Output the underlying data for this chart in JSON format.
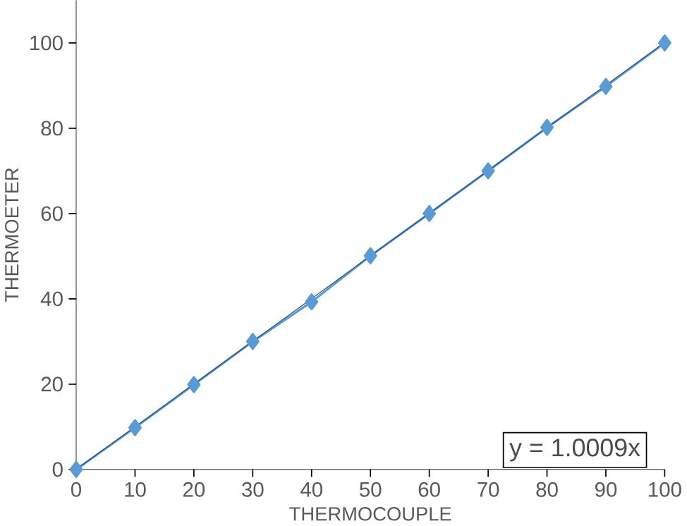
{
  "chart_data": {
    "type": "line",
    "xlabel": "THERMOCOUPLE",
    "ylabel": "THERMOETER",
    "xlim": [
      0,
      100
    ],
    "ylim": [
      0,
      110
    ],
    "xticks": [
      0,
      10,
      20,
      30,
      40,
      50,
      60,
      70,
      80,
      90,
      100
    ],
    "yticks": [
      0,
      20,
      40,
      60,
      80,
      100
    ],
    "grid": false,
    "series": [
      {
        "color": "#5b9bd5",
        "marker": "diamond",
        "x": [
          0,
          10,
          20,
          30,
          40,
          50,
          60,
          70,
          80,
          90,
          100
        ],
        "values": [
          0,
          9.8,
          19.9,
          30,
          39.3,
          50.1,
          60,
          70,
          80.2,
          89.8,
          100
        ]
      },
      {
        "color": "#2f4f7f",
        "marker": "none",
        "x": [
          0,
          100
        ],
        "values": [
          0,
          100.1
        ]
      }
    ],
    "annotations": [
      "y = 1.0009x"
    ]
  }
}
